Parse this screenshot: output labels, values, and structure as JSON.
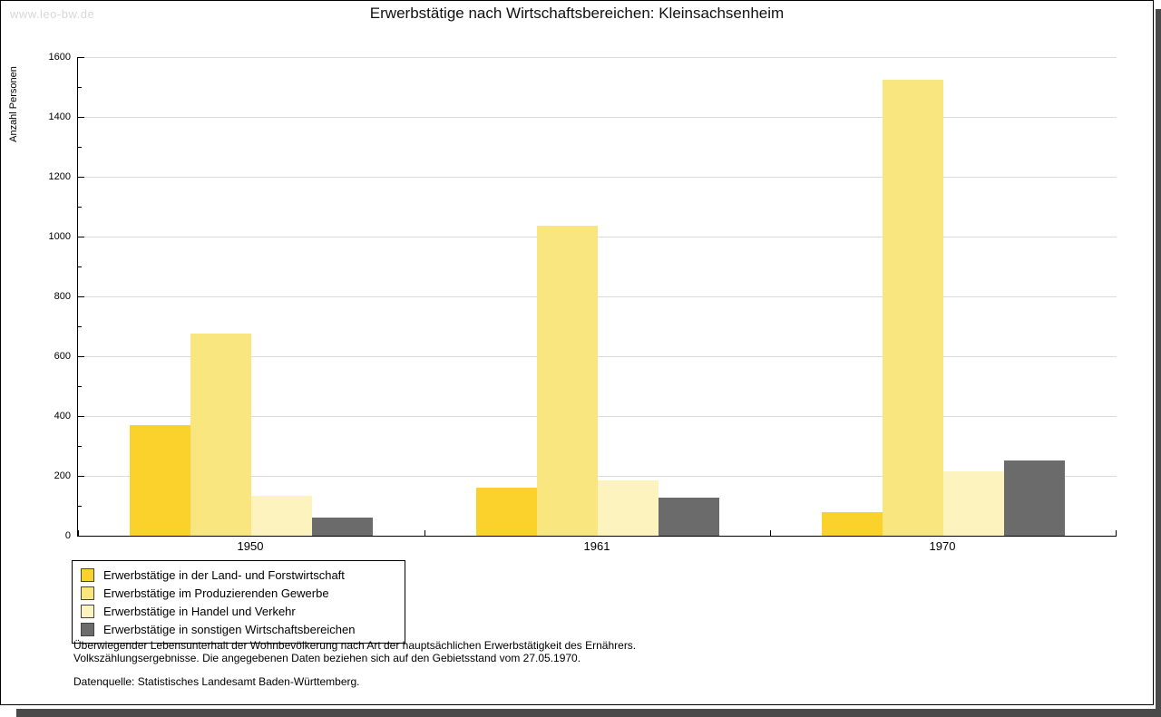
{
  "watermark": "www.leo-bw.de",
  "title": "Erwerbstätige nach Wirtschaftsbereichen: Kleinsachsenheim",
  "chart_data": {
    "type": "bar",
    "title": "Erwerbstätige nach Wirtschaftsbereichen: Kleinsachsenheim",
    "xlabel": "",
    "ylabel": "Anzahl Personen",
    "ylim": [
      0,
      1600
    ],
    "ytick_step": 200,
    "minor_tick_step": 100,
    "grid": true,
    "legend_position": "bottom-left",
    "categories": [
      "1950",
      "1961",
      "1970"
    ],
    "series": [
      {
        "name": "Erwerbstätige in der Land- und Forstwirtschaft",
        "color": "#FBD22C",
        "values": [
          370,
          160,
          78
        ]
      },
      {
        "name": "Erwerbstätige im Produzierenden Gewerbe",
        "color": "#FAE67F",
        "values": [
          675,
          1035,
          1525
        ]
      },
      {
        "name": "Erwerbstätige in Handel und Verkehr",
        "color": "#FCF3BE",
        "values": [
          132,
          185,
          216
        ]
      },
      {
        "name": "Erwerbstätige in sonstigen Wirtschaftsbereichen",
        "color": "#6B6B6B",
        "values": [
          62,
          127,
          250
        ]
      }
    ]
  },
  "footer": {
    "line1": "Überwiegender Lebensunterhalt der Wohnbevölkerung nach Art der hauptsächlichen Erwerbstätigkeit des Ernährers.",
    "line2": "Volkszählungsergebnisse. Die angegebenen Daten beziehen sich auf den Gebietsstand vom 27.05.1970.",
    "line3": "Datenquelle: Statistisches Landesamt Baden-Württemberg."
  }
}
